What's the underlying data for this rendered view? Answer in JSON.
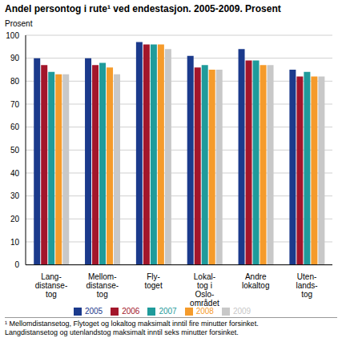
{
  "chart_data": {
    "type": "bar",
    "title": "Andel persontog i rute¹ ved endestasjon. 2005-2009. Prosent",
    "y_label": "Prosent",
    "categories": [
      "Lang-\ndistanse-\ntog",
      "Mellom-\ndistanse-\ntog",
      "Fly-\ntoget",
      "Lokal-\ntog i\nOslo-\nområdet",
      "Andre\nlokaltog",
      "Uten-\nlands-\ntog"
    ],
    "series": [
      {
        "name": "2005",
        "color": "#1b3a8c",
        "values": [
          90,
          90,
          97,
          91,
          94,
          85
        ]
      },
      {
        "name": "2006",
        "color": "#a3162b",
        "values": [
          87,
          87,
          96,
          86,
          89,
          82
        ]
      },
      {
        "name": "2007",
        "color": "#1f9b9b",
        "values": [
          84,
          88,
          96,
          87,
          89,
          84
        ]
      },
      {
        "name": "2008",
        "color": "#f59b2b",
        "values": [
          83,
          86,
          96,
          85,
          87,
          82
        ]
      },
      {
        "name": "2009",
        "color": "#c8c8c8",
        "values": [
          83,
          83,
          94,
          85,
          87,
          82
        ]
      }
    ],
    "ylim": [
      0,
      100
    ],
    "yticks": [
      0,
      10,
      20,
      30,
      40,
      50,
      60,
      70,
      80,
      90,
      100
    ],
    "grid": true,
    "legend": "bottom",
    "footnote": [
      "¹ Mellomdistansetog, Flytoget og lokaltog maksimalt inntil fire minutter forsinket.",
      "Langdistansetog og utenlandstog maksimalt inntil seks minutter forsinket."
    ]
  }
}
